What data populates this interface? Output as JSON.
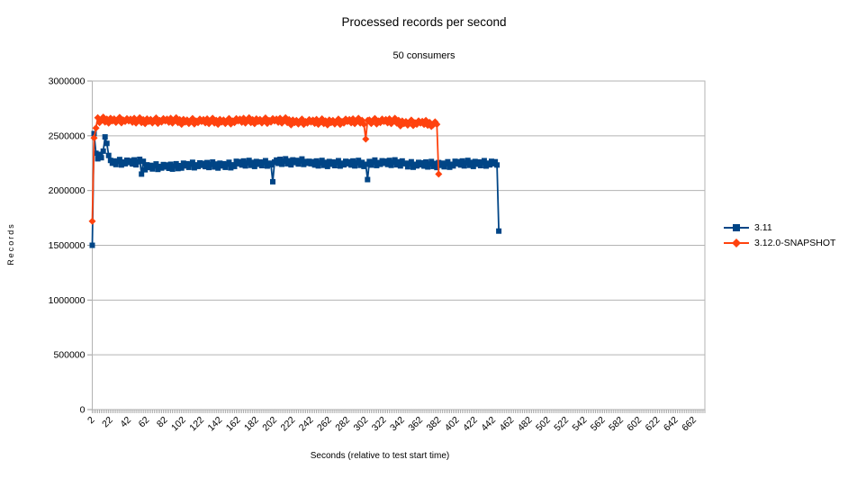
{
  "chart_data": {
    "type": "line",
    "title": "Processed records per second",
    "subtitle": "50 consumers",
    "grid": "horizontal",
    "legend_position": "right",
    "x_axis": {
      "title": "Seconds  (relative to test start time)",
      "range": [
        2,
        674
      ],
      "minor_tick_step": 2,
      "tick_labels": [
        "2",
        "22",
        "42",
        "62",
        "82",
        "102",
        "122",
        "142",
        "162",
        "182",
        "202",
        "222",
        "242",
        "262",
        "282",
        "302",
        "322",
        "342",
        "362",
        "382",
        "402",
        "422",
        "442",
        "462",
        "482",
        "502",
        "522",
        "542",
        "562",
        "582",
        "602",
        "622",
        "642",
        "662"
      ]
    },
    "y_axis": {
      "title": "Records",
      "range": [
        0,
        3000000
      ],
      "tick_labels": [
        "0",
        "500000",
        "1000000",
        "1500000",
        "2000000",
        "2500000",
        "3000000"
      ]
    },
    "series": [
      {
        "name": "3.11",
        "color": "#004586",
        "marker": "square",
        "x_start": 2,
        "x_step": 2,
        "values": [
          1500000,
          2520000,
          2340000,
          2290000,
          2330000,
          2300000,
          2360000,
          2490000,
          2430000,
          2320000,
          2275000,
          2250000,
          2270000,
          2237000,
          2265000,
          2283000,
          2233000,
          2260000,
          2245000,
          2277000,
          2255000,
          2273000,
          2243000,
          2280000,
          2235000,
          2263000,
          2285000,
          2150000,
          2267000,
          2190000,
          2235000,
          2210000,
          2230000,
          2197000,
          2225000,
          2243000,
          2193000,
          2220000,
          2205000,
          2237000,
          2215000,
          2233000,
          2203000,
          2240000,
          2195000,
          2223000,
          2245000,
          2200000,
          2227000,
          2205000,
          2250000,
          2225000,
          2245000,
          2212000,
          2240000,
          2258000,
          2208000,
          2235000,
          2220000,
          2252000,
          2230000,
          2248000,
          2218000,
          2255000,
          2210000,
          2238000,
          2260000,
          2215000,
          2242000,
          2205000,
          2250000,
          2225000,
          2245000,
          2212000,
          2240000,
          2258000,
          2208000,
          2235000,
          2220000,
          2267000,
          2245000,
          2263000,
          2233000,
          2270000,
          2225000,
          2253000,
          2275000,
          2230000,
          2257000,
          2220000,
          2265000,
          2240000,
          2260000,
          2227000,
          2255000,
          2273000,
          2223000,
          2250000,
          2235000,
          2080000,
          2260000,
          2278000,
          2248000,
          2285000,
          2240000,
          2268000,
          2290000,
          2245000,
          2272000,
          2235000,
          2280000,
          2255000,
          2275000,
          2242000,
          2270000,
          2288000,
          2238000,
          2265000,
          2250000,
          2267000,
          2245000,
          2263000,
          2233000,
          2270000,
          2225000,
          2253000,
          2275000,
          2230000,
          2257000,
          2220000,
          2265000,
          2240000,
          2260000,
          2227000,
          2255000,
          2273000,
          2223000,
          2250000,
          2235000,
          2267000,
          2245000,
          2263000,
          2233000,
          2270000,
          2225000,
          2253000,
          2275000,
          2230000,
          2257000,
          2220000,
          2240000,
          2100000,
          2265000,
          2232000,
          2260000,
          2278000,
          2228000,
          2255000,
          2240000,
          2272000,
          2250000,
          2268000,
          2238000,
          2275000,
          2230000,
          2258000,
          2280000,
          2235000,
          2262000,
          2225000,
          2270000,
          2245000,
          2250000,
          2217000,
          2245000,
          2263000,
          2213000,
          2240000,
          2225000,
          2257000,
          2235000,
          2253000,
          2223000,
          2260000,
          2215000,
          2243000,
          2265000,
          2220000,
          2247000,
          2210000,
          2255000,
          2230000,
          2250000,
          2217000,
          2245000,
          2263000,
          2213000,
          2240000,
          2225000,
          2267000,
          2245000,
          2263000,
          2233000,
          2270000,
          2225000,
          2253000,
          2275000,
          2230000,
          2257000,
          2220000,
          2265000,
          2240000,
          2260000,
          2227000,
          2255000,
          2273000,
          2223000,
          2250000,
          2235000,
          2267000,
          2245000,
          2263000,
          2233000,
          1630000
        ]
      },
      {
        "name": "3.12.0-SNAPSHOT",
        "color": "#FF420E",
        "marker": "diamond",
        "x_start": 2,
        "x_step": 2,
        "values": [
          1720000,
          2480000,
          2570000,
          2665000,
          2620000,
          2648000,
          2670000,
          2625000,
          2652000,
          2615000,
          2660000,
          2635000,
          2655000,
          2622000,
          2650000,
          2668000,
          2618000,
          2645000,
          2630000,
          2657000,
          2635000,
          2653000,
          2623000,
          2660000,
          2615000,
          2643000,
          2665000,
          2620000,
          2647000,
          2610000,
          2655000,
          2630000,
          2650000,
          2617000,
          2645000,
          2663000,
          2613000,
          2640000,
          2625000,
          2657000,
          2635000,
          2653000,
          2623000,
          2660000,
          2615000,
          2643000,
          2665000,
          2620000,
          2647000,
          2605000,
          2650000,
          2625000,
          2645000,
          2612000,
          2640000,
          2658000,
          2608000,
          2635000,
          2620000,
          2652000,
          2630000,
          2648000,
          2618000,
          2655000,
          2610000,
          2638000,
          2660000,
          2615000,
          2642000,
          2605000,
          2650000,
          2625000,
          2645000,
          2612000,
          2640000,
          2658000,
          2608000,
          2635000,
          2620000,
          2657000,
          2635000,
          2653000,
          2623000,
          2660000,
          2615000,
          2643000,
          2665000,
          2620000,
          2647000,
          2610000,
          2655000,
          2630000,
          2650000,
          2617000,
          2645000,
          2663000,
          2613000,
          2640000,
          2625000,
          2657000,
          2635000,
          2653000,
          2623000,
          2660000,
          2615000,
          2643000,
          2665000,
          2620000,
          2647000,
          2600000,
          2645000,
          2620000,
          2640000,
          2607000,
          2635000,
          2653000,
          2603000,
          2630000,
          2615000,
          2647000,
          2625000,
          2643000,
          2613000,
          2650000,
          2605000,
          2633000,
          2655000,
          2610000,
          2637000,
          2600000,
          2645000,
          2620000,
          2640000,
          2607000,
          2635000,
          2653000,
          2603000,
          2630000,
          2615000,
          2652000,
          2630000,
          2648000,
          2618000,
          2655000,
          2610000,
          2638000,
          2660000,
          2615000,
          2642000,
          2605000,
          2470000,
          2640000,
          2645000,
          2612000,
          2640000,
          2658000,
          2608000,
          2635000,
          2620000,
          2652000,
          2630000,
          2648000,
          2618000,
          2655000,
          2610000,
          2638000,
          2660000,
          2615000,
          2642000,
          2590000,
          2635000,
          2610000,
          2630000,
          2597000,
          2625000,
          2643000,
          2593000,
          2620000,
          2605000,
          2637000,
          2615000,
          2633000,
          2603000,
          2640000,
          2595000,
          2623000,
          2585000,
          2600000,
          2627000,
          2605000,
          2150000
        ]
      }
    ],
    "colors": {
      "grid": "#b3b3b3",
      "axis": "#999999",
      "text": "#000000"
    }
  }
}
